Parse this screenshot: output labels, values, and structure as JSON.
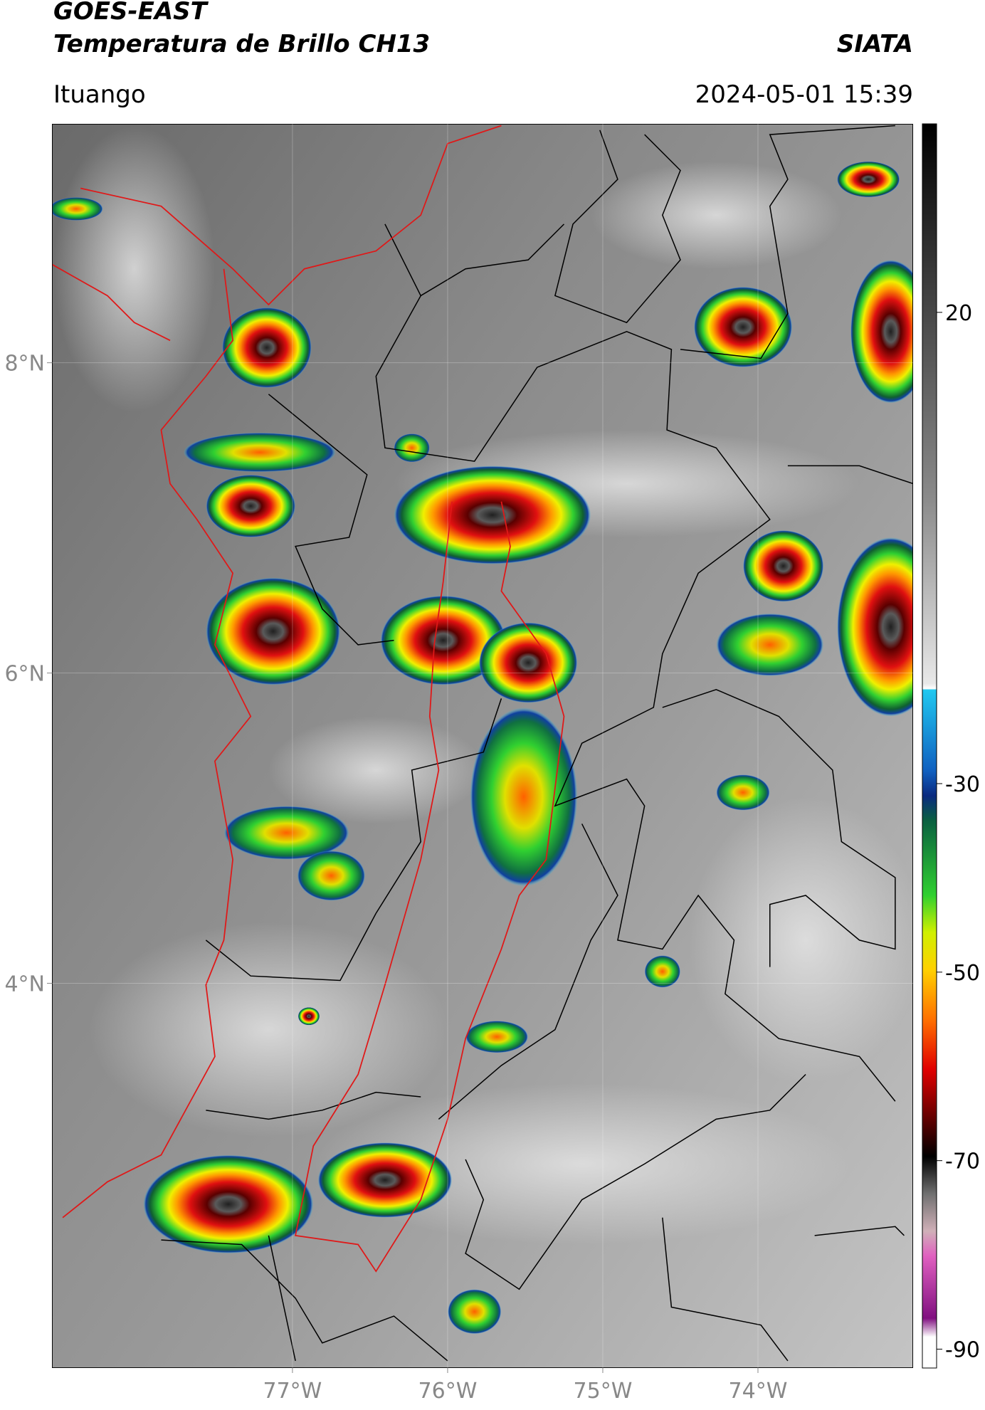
{
  "header": {
    "title": "GOES-EAST",
    "subtitle": "Temperatura de Brillo CH13",
    "source": "SIATA",
    "location": "Ituango",
    "datetime": "2024-05-01 15:39"
  },
  "map": {
    "lonlim": [
      -78.55,
      -73.0
    ],
    "latlim": [
      1.52,
      9.54
    ],
    "lonticks": [
      {
        "value": -77,
        "label": "77°W"
      },
      {
        "value": -76,
        "label": "76°W"
      },
      {
        "value": -75,
        "label": "75°W"
      },
      {
        "value": -74,
        "label": "74°W"
      }
    ],
    "latticks": [
      {
        "value": 8,
        "label": "8°N"
      },
      {
        "value": 6,
        "label": "6°N"
      },
      {
        "value": 4,
        "label": "4°N"
      }
    ]
  },
  "colorbar": {
    "lim": [
      -92,
      40
    ],
    "ticks": [
      20,
      -30,
      -50,
      -70,
      -90
    ]
  }
}
